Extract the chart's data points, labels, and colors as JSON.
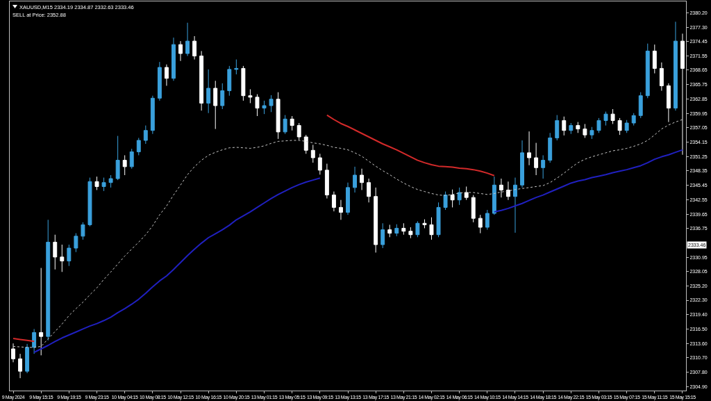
{
  "chart_data": {
    "type": "candlestick",
    "title": "XAUUSD,M15 2334.19 2334.87 2332.63 2333.46",
    "subtitle": "SELL at Price: 2352.88",
    "categories": [
      "9 May 2024",
      null,
      null,
      null,
      "9 May 15:15",
      null,
      null,
      null,
      "9 May 19:15",
      null,
      null,
      null,
      "9 May 23:15",
      null,
      null,
      null,
      "10 May 04:15",
      null,
      null,
      null,
      "10 May 08:15",
      null,
      null,
      null,
      "10 May 12:15",
      null,
      null,
      null,
      "10 May 16:15",
      null,
      null,
      null,
      "10 May 20:15",
      null,
      null,
      null,
      "13 May 01:15",
      null,
      null,
      null,
      "13 May 05:15",
      null,
      null,
      null,
      "13 May 09:15",
      null,
      null,
      null,
      "13 May 13:15",
      null,
      null,
      null,
      "13 May 17:15",
      null,
      null,
      null,
      "13 May 21:15",
      null,
      null,
      null,
      "14 May 02:15",
      null,
      null,
      null,
      "14 May 06:15",
      null,
      null,
      null,
      "14 May 10:15",
      null,
      null,
      null,
      "14 May 14:15",
      null,
      null,
      null,
      "14 May 18:15",
      null,
      null,
      null,
      "14 May 22:15",
      null,
      null,
      null,
      "15 May 03:15",
      null,
      null,
      null,
      "15 May 07:15",
      null,
      null,
      null,
      "15 May 11:15",
      null,
      null,
      null,
      "15 May 15:15"
    ],
    "series": [
      {
        "type": "line",
        "color": "#c8c8c8",
        "line_style": "dotted",
        "values": [
          2313.0,
          2312.9,
          2312.8,
          2312.8,
          2313.0,
          2314.5,
          2316.0,
          2317.5,
          2319.2,
          2320.6,
          2321.9,
          2323.4,
          2324.8,
          2326.5,
          2328.0,
          2329.6,
          2331.2,
          2332.6,
          2334.0,
          2335.5,
          2337.3,
          2339.5,
          2341.3,
          2343.5,
          2345.5,
          2347.6,
          2349.2,
          2350.5,
          2351.5,
          2352.1,
          2352.6,
          2353.0,
          2353.1,
          2353.0,
          2352.9,
          2353.1,
          2353.4,
          2353.9,
          2354.3,
          2354.4,
          2354.5,
          2354.5,
          2354.3,
          2354.0,
          2353.8,
          2353.5,
          2353.1,
          2352.9,
          2352.6,
          2352.0,
          2351.3,
          2350.3,
          2349.3,
          2348.4,
          2347.6,
          2346.7,
          2345.9,
          2345.2,
          2344.6,
          2344.2,
          2343.8,
          2343.5,
          2343.4,
          2343.6,
          2343.9,
          2344.0,
          2344.0,
          2343.8,
          2343.6,
          2343.8,
          2344.1,
          2344.3,
          2344.6,
          2344.8,
          2345.0,
          2345.2,
          2345.4,
          2346.0,
          2346.9,
          2347.9,
          2349.0,
          2350.0,
          2350.7,
          2351.2,
          2351.6,
          2352.0,
          2352.4,
          2352.6,
          2352.9,
          2353.3,
          2353.8,
          2354.5,
          2355.6,
          2356.8,
          2357.6,
          2358.2,
          2358.7
        ]
      },
      {
        "type": "line",
        "color": "#d42a2a",
        "line_style": "solid",
        "values": [
          2314.6,
          2314.4,
          2314.2,
          2314.0,
          null,
          null,
          null,
          null,
          null,
          null,
          null,
          null,
          null,
          null,
          null,
          null,
          null,
          null,
          null,
          null,
          null,
          null,
          null,
          null,
          null,
          null,
          null,
          null,
          null,
          null,
          null,
          null,
          null,
          null,
          null,
          null,
          null,
          null,
          null,
          null,
          null,
          null,
          null,
          null,
          null,
          2359.6,
          2358.7,
          2357.9,
          2357.3,
          2356.6,
          2355.9,
          2355.2,
          2354.5,
          2353.8,
          2353.2,
          2352.6,
          2351.9,
          2351.2,
          2350.5,
          2350.0,
          2349.6,
          2349.3,
          2349.2,
          2349.1,
          2348.9,
          2348.8,
          2348.6,
          2348.3,
          2347.9,
          2347.4,
          null,
          null,
          null,
          null,
          null,
          null,
          null,
          null,
          null,
          null,
          null,
          null,
          null,
          null,
          null,
          null,
          null,
          null,
          null,
          null,
          null,
          null,
          null,
          null,
          null,
          null,
          null
        ]
      },
      {
        "type": "line",
        "color": "#2020c0",
        "line_style": "solid",
        "values": [
          null,
          null,
          null,
          2311.8,
          2312.5,
          2313.2,
          2314.0,
          2314.7,
          2315.3,
          2315.9,
          2316.5,
          2317.1,
          2317.6,
          2318.2,
          2318.9,
          2319.8,
          2320.6,
          2321.5,
          2322.5,
          2323.7,
          2325.0,
          2326.2,
          2327.2,
          2328.5,
          2329.9,
          2331.3,
          2332.6,
          2333.8,
          2334.9,
          2335.7,
          2336.5,
          2337.4,
          2338.5,
          2339.3,
          2340.1,
          2341.0,
          2341.9,
          2342.8,
          2343.6,
          2344.3,
          2345.0,
          2345.6,
          2346.1,
          2346.5,
          2346.9,
          null,
          null,
          null,
          null,
          null,
          null,
          null,
          null,
          null,
          null,
          null,
          null,
          null,
          null,
          null,
          null,
          null,
          null,
          null,
          null,
          null,
          null,
          null,
          null,
          2340.1,
          2340.4,
          2340.8,
          2341.3,
          2341.8,
          2342.4,
          2343.0,
          2343.5,
          2344.1,
          2344.7,
          2345.3,
          2345.9,
          2346.3,
          2346.6,
          2347.0,
          2347.3,
          2347.6,
          2348.0,
          2348.3,
          2348.6,
          2349.0,
          2349.4,
          2350.0,
          2350.7,
          2351.2,
          2351.6,
          2352.1,
          2352.6
        ]
      },
      {
        "color": "#3aa0dc",
        "ohlc": [
          null,
          null,
          [
            2308.0,
            2313.5,
            2307.6,
            2312.8
          ],
          [
            2312.8,
            2316.5,
            2311.5,
            2315.8
          ],
          null,
          [
            2315.0,
            2338.5,
            2314.2,
            2334.0
          ],
          null,
          null,
          [
            2330.2,
            2333.5,
            2329.2,
            2332.8
          ],
          [
            2332.8,
            2335.8,
            2332.0,
            2335.2
          ],
          [
            2335.2,
            2338.0,
            2334.5,
            2337.5
          ],
          [
            2337.5,
            2347.0,
            2337.2,
            2346.2
          ],
          null,
          [
            2345.2,
            2347.0,
            2344.3,
            2346.0
          ],
          [
            2346.0,
            2347.5,
            2345.0,
            2346.8
          ],
          [
            2346.8,
            2355.4,
            2346.5,
            2350.5
          ],
          null,
          [
            2349.2,
            2352.8,
            2348.8,
            2352.2
          ],
          [
            2352.2,
            2355.0,
            2351.5,
            2354.5
          ],
          [
            2354.5,
            2357.5,
            2353.8,
            2356.5
          ],
          [
            2356.5,
            2363.5,
            2355.8,
            2363.0
          ],
          [
            2363.0,
            2370.3,
            2362.5,
            2369.2
          ],
          null,
          [
            2367.0,
            2375.2,
            2366.5,
            2373.8
          ],
          null,
          [
            2372.0,
            2378.2,
            2371.5,
            2374.5
          ],
          null,
          null,
          [
            2362.0,
            2368.8,
            2360.0,
            2365.0
          ],
          null,
          [
            2361.5,
            2366.0,
            2360.8,
            2364.5
          ],
          [
            2364.5,
            2369.5,
            2363.5,
            2368.8
          ],
          [
            2368.8,
            2370.8,
            2367.8,
            2369.0
          ],
          null,
          null,
          null,
          [
            2361.0,
            2362.5,
            2359.8,
            2361.5
          ],
          [
            2361.5,
            2363.6,
            2360.2,
            2362.8
          ],
          null,
          [
            2356.2,
            2359.6,
            2355.8,
            2358.8
          ],
          null,
          null,
          null,
          null,
          null,
          null,
          null,
          null,
          [
            2340.0,
            2346.0,
            2339.5,
            2345.0
          ],
          [
            2345.0,
            2349.2,
            2344.0,
            2347.5
          ],
          null,
          null,
          null,
          [
            2333.5,
            2337.8,
            2332.8,
            2336.5
          ],
          null,
          [
            2335.8,
            2337.6,
            2335.2,
            2336.8
          ],
          null,
          null,
          [
            2335.5,
            2338.2,
            2335.0,
            2337.8
          ],
          null,
          null,
          [
            2335.5,
            2342.0,
            2335.0,
            2341.0
          ],
          [
            2341.0,
            2344.2,
            2340.5,
            2343.5
          ],
          null,
          [
            2342.5,
            2345.0,
            2341.5,
            2344.0
          ],
          null,
          null,
          null,
          [
            2337.0,
            2340.5,
            2336.5,
            2339.8
          ],
          [
            2339.8,
            2347.2,
            2339.5,
            2345.5
          ],
          null,
          null,
          [
            2343.2,
            2347.0,
            2335.9,
            2345.5
          ],
          [
            2345.5,
            2354.5,
            2345.0,
            2352.0
          ],
          null,
          null,
          [
            2349.0,
            2351.5,
            2346.8,
            2350.5
          ],
          [
            2350.5,
            2356.0,
            2350.0,
            2355.0
          ],
          [
            2355.0,
            2359.6,
            2354.5,
            2358.5
          ],
          null,
          [
            2356.5,
            2358.0,
            2355.8,
            2357.5
          ],
          null,
          null,
          [
            2355.6,
            2357.2,
            2354.8,
            2356.5
          ],
          [
            2356.5,
            2359.0,
            2356.0,
            2358.5
          ],
          [
            2358.5,
            2360.3,
            2357.5,
            2359.8
          ],
          null,
          null,
          [
            2356.5,
            2358.6,
            2356.0,
            2358.0
          ],
          [
            2358.0,
            2360.0,
            2357.5,
            2359.5
          ],
          [
            2359.5,
            2364.2,
            2359.0,
            2363.5
          ],
          [
            2363.5,
            2374.0,
            2363.0,
            2372.5
          ],
          null,
          null,
          null,
          [
            2361.0,
            2378.4,
            2360.5,
            2374.5
          ],
          null
        ]
      },
      {
        "color": "#ffffff",
        "ohlc": [
          [
            2312.5,
            2313.6,
            2309.8,
            2310.5
          ],
          [
            2310.5,
            2311.5,
            2306.6,
            2308.0
          ],
          null,
          null,
          [
            2315.8,
            2328.8,
            2311.2,
            2315.0
          ],
          null,
          [
            2334.0,
            2335.5,
            2328.5,
            2331.0
          ],
          [
            2331.0,
            2333.5,
            2328.0,
            2330.2
          ],
          null,
          null,
          null,
          null,
          [
            2346.2,
            2347.2,
            2344.5,
            2345.2
          ],
          null,
          null,
          null,
          [
            2350.5,
            2351.5,
            2347.5,
            2349.2
          ],
          null,
          null,
          null,
          null,
          null,
          [
            2369.2,
            2369.8,
            2365.5,
            2367.0
          ],
          null,
          [
            2373.8,
            2374.5,
            2370.5,
            2372.0
          ],
          null,
          [
            2374.5,
            2375.5,
            2370.8,
            2371.5
          ],
          [
            2371.5,
            2372.5,
            2360.5,
            2362.0
          ],
          null,
          [
            2365.0,
            2366.5,
            2356.8,
            2361.5
          ],
          null,
          null,
          null,
          [
            2369.0,
            2369.5,
            2362.5,
            2363.5
          ],
          [
            2363.5,
            2364.8,
            2362.0,
            2363.2
          ],
          [
            2363.2,
            2363.8,
            2359.4,
            2361.0
          ],
          null,
          null,
          [
            2362.8,
            2364.2,
            2354.8,
            2356.2
          ],
          null,
          [
            2358.8,
            2359.4,
            2356.5,
            2357.5
          ],
          [
            2357.5,
            2358.0,
            2354.6,
            2355.2
          ],
          [
            2355.2,
            2355.6,
            2351.8,
            2352.5
          ],
          [
            2352.5,
            2353.6,
            2350.0,
            2351.0
          ],
          [
            2351.0,
            2351.8,
            2347.6,
            2348.5
          ],
          [
            2348.5,
            2349.8,
            2342.8,
            2343.5
          ],
          [
            2343.5,
            2344.2,
            2340.2,
            2341.0
          ],
          [
            2341.0,
            2342.5,
            2338.5,
            2340.0
          ],
          null,
          null,
          [
            2347.5,
            2348.8,
            2344.5,
            2346.0
          ],
          [
            2346.0,
            2346.8,
            2342.0,
            2343.2
          ],
          [
            2343.2,
            2345.0,
            2331.9,
            2333.5
          ],
          null,
          [
            2336.5,
            2337.5,
            2335.0,
            2335.8
          ],
          null,
          [
            2336.8,
            2337.8,
            2335.5,
            2336.2
          ],
          [
            2336.2,
            2337.0,
            2334.8,
            2335.5
          ],
          null,
          [
            2337.8,
            2338.6,
            2336.8,
            2337.5
          ],
          [
            2337.5,
            2339.0,
            2334.5,
            2335.5
          ],
          null,
          null,
          [
            2343.5,
            2344.6,
            2341.0,
            2342.5
          ],
          null,
          [
            2344.0,
            2345.2,
            2342.5,
            2343.0
          ],
          [
            2343.0,
            2343.5,
            2338.0,
            2338.8
          ],
          [
            2338.8,
            2339.5,
            2335.8,
            2337.0
          ],
          null,
          null,
          [
            2345.5,
            2346.8,
            2343.0,
            2344.5
          ],
          [
            2344.5,
            2346.2,
            2342.5,
            2343.2
          ],
          null,
          null,
          [
            2352.0,
            2356.3,
            2349.5,
            2351.0
          ],
          [
            2351.0,
            2354.0,
            2347.5,
            2349.0
          ],
          null,
          null,
          null,
          [
            2358.5,
            2359.3,
            2355.5,
            2356.5
          ],
          null,
          [
            2357.5,
            2358.2,
            2356.0,
            2356.8
          ],
          [
            2356.8,
            2357.8,
            2355.0,
            2355.6
          ],
          null,
          null,
          null,
          [
            2359.8,
            2360.8,
            2357.8,
            2358.5
          ],
          [
            2358.5,
            2359.0,
            2355.6,
            2356.5
          ],
          null,
          null,
          null,
          null,
          [
            2372.5,
            2373.8,
            2368.0,
            2369.0
          ],
          [
            2369.0,
            2370.2,
            2364.5,
            2365.5
          ],
          [
            2365.5,
            2366.0,
            2358.2,
            2361.0
          ],
          null,
          [
            2374.5,
            2376.0,
            2351.6,
            2369.0
          ]
        ]
      }
    ],
    "ylim": [
      2304.1,
      2382.5
    ],
    "yticks": [
      {
        "value": 2380.2,
        "label": "2380.20"
      },
      {
        "value": 2377.3,
        "label": "2377.30"
      },
      2374.45,
      2371.55,
      2368.65,
      2365.75,
      2362.85,
      2359.95,
      2357.05,
      2354.15,
      2351.25,
      2348.35,
      2345.45,
      2342.55,
      2339.65,
      2336.75,
      2330.95,
      2328.05,
      {
        "value": 2325.2,
        "label": "2325.20"
      },
      {
        "value": 2322.3,
        "label": "2322.30"
      },
      {
        "value": 2319.4,
        "label": "2319.40"
      },
      {
        "value": 2316.5,
        "label": "2316.50"
      },
      {
        "value": 2313.6,
        "label": "2313.60"
      },
      {
        "value": 2310.7,
        "label": "2310.70"
      },
      {
        "value": 2307.8,
        "label": "2307.80"
      },
      {
        "value": 2304.9,
        "label": "2304.90"
      }
    ],
    "annotations": [
      {
        "text": "2333.46",
        "y": 2333.46
      }
    ]
  }
}
